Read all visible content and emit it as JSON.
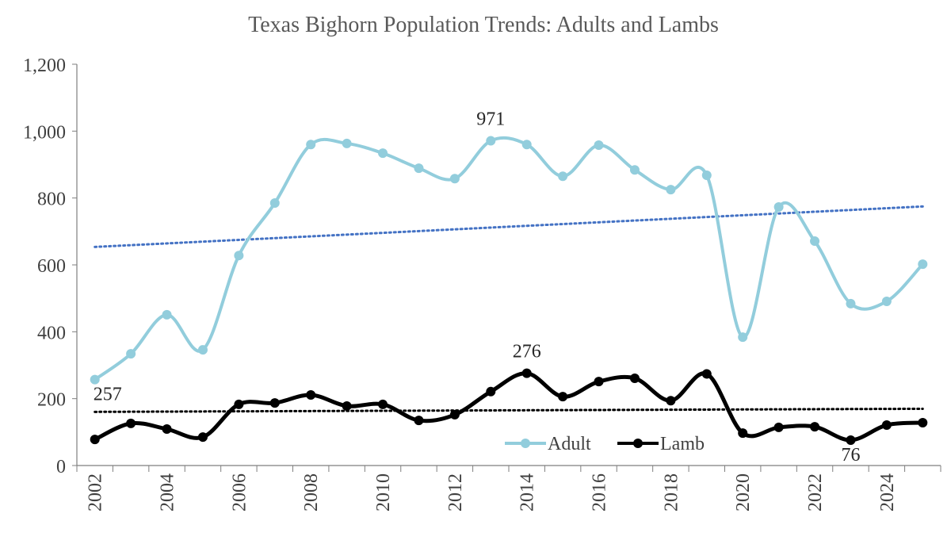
{
  "chart_data": {
    "type": "line",
    "title": "Texas Bighorn Population Trends: Adults and Lambs",
    "categories": [
      "2002",
      null,
      "2004",
      null,
      "2006",
      null,
      "2008",
      null,
      "2010",
      null,
      "2012",
      null,
      "2014",
      null,
      "2016",
      null,
      "2018",
      null,
      "2020",
      null,
      "2022",
      null,
      "2024",
      null
    ],
    "series": [
      {
        "name": "Adult",
        "color": "#92cddc",
        "trend_color": "#4472c4",
        "labeled_indices": [
          0,
          11
        ],
        "values": [
          257,
          334,
          451,
          346,
          628,
          785,
          960,
          963,
          934,
          889,
          858,
          971,
          960,
          865,
          958,
          884,
          825,
          868,
          384,
          773,
          671,
          484,
          491,
          602
        ]
      },
      {
        "name": "Lamb",
        "color": "#000000",
        "trend_color": "#000000",
        "labeled_indices": [
          12,
          21
        ],
        "values": [
          78,
          126,
          109,
          85,
          183,
          187,
          211,
          178,
          183,
          135,
          152,
          221,
          276,
          206,
          251,
          261,
          194,
          274,
          97,
          114,
          116,
          76,
          121,
          128
        ]
      }
    ],
    "ylim": [
      0,
      1200
    ],
    "yticks": [
      0,
      200,
      400,
      600,
      800,
      {
        "value": 1000,
        "label": "1,000"
      },
      {
        "value": 1200,
        "label": "1,200"
      }
    ],
    "smooth": true,
    "markers": true,
    "trendline": true,
    "legend": "bottom"
  }
}
